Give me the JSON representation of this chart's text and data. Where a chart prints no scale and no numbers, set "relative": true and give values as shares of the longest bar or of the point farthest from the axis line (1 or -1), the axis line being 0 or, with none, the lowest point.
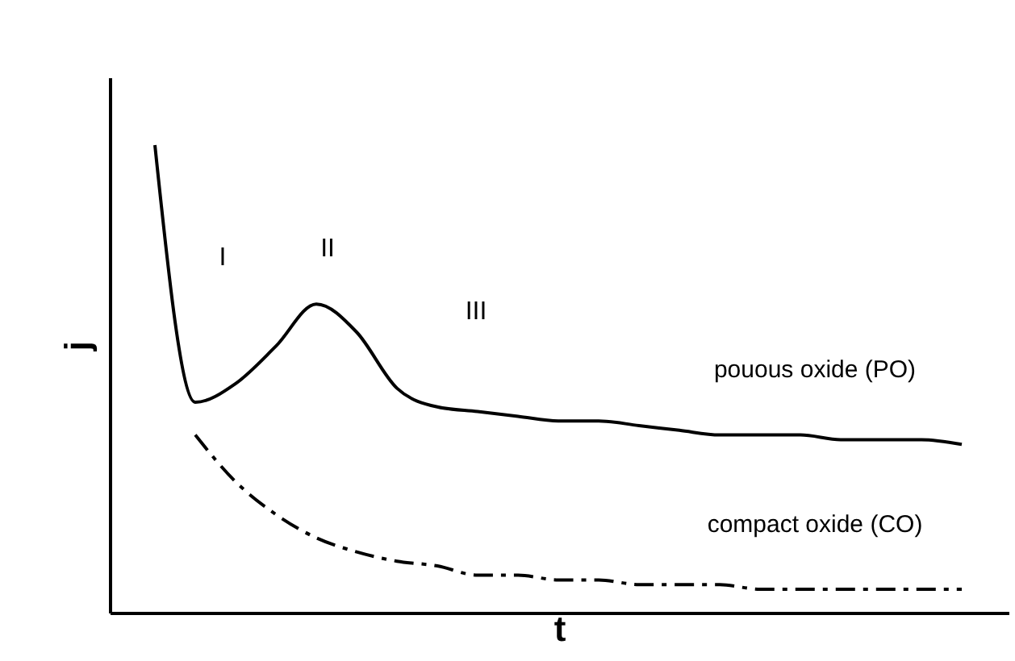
{
  "chart_data": {
    "type": "line",
    "relative": true,
    "xlabel": "t",
    "ylabel": "j",
    "tick_labels": false,
    "grid": false,
    "legend": false,
    "marker": "none",
    "categories": [
      null,
      null,
      null,
      null,
      null,
      null,
      null,
      null,
      null,
      null,
      null,
      null,
      null,
      null,
      null,
      null,
      null,
      null,
      null,
      null,
      null
    ],
    "series": [
      {
        "name": "pouous oxide (PO)",
        "color": "#000000",
        "line_style": "solid",
        "values": [
          1.0,
          0.45,
          0.49,
          0.57,
          0.66,
          0.6,
          0.48,
          0.44,
          0.43,
          0.42,
          0.41,
          0.41,
          0.4,
          0.39,
          0.38,
          0.38,
          0.38,
          0.37,
          0.37,
          0.37,
          0.36
        ]
      },
      {
        "name": "compact oxide (CO)",
        "color": "#000000",
        "line_style": "dashed",
        "values": [
          null,
          0.38,
          0.28,
          0.21,
          0.16,
          0.13,
          0.11,
          0.1,
          0.08,
          0.08,
          0.07,
          0.07,
          0.06,
          0.06,
          0.06,
          0.05,
          0.05,
          0.05,
          0.05,
          0.05,
          0.05
        ]
      }
    ],
    "annotations": [
      "I",
      "II",
      "III"
    ]
  }
}
